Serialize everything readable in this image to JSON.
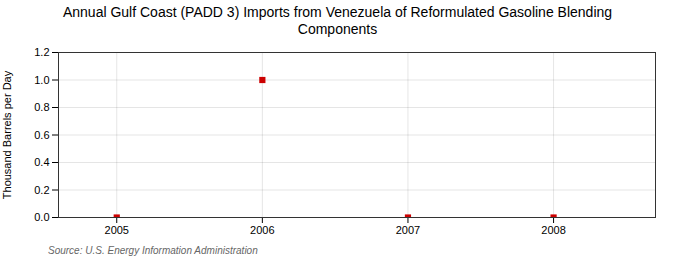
{
  "chart_data": {
    "type": "scatter",
    "title": "Annual Gulf Coast (PADD 3) Imports from Venezuela of Reformulated Gasoline Blending\nComponents",
    "ylabel": "Thousand Barrels per Day",
    "source": "Source: U.S. Energy Information Administration",
    "x": [
      2005,
      2006,
      2007,
      2008
    ],
    "values": [
      0.0,
      1.0,
      0.0,
      0.0
    ],
    "color": "#cc0000",
    "marker": "square",
    "xlim": [
      2004.6,
      2008.7
    ],
    "ylim": [
      0.0,
      1.2
    ],
    "xticks": [
      2005,
      2006,
      2007,
      2008
    ],
    "yticks": [
      {
        "value": 0.0,
        "label": "0.0"
      },
      0.2,
      0.4,
      0.6,
      0.8,
      {
        "value": 1.0,
        "label": "1.0"
      },
      1.2
    ],
    "grid": true
  }
}
